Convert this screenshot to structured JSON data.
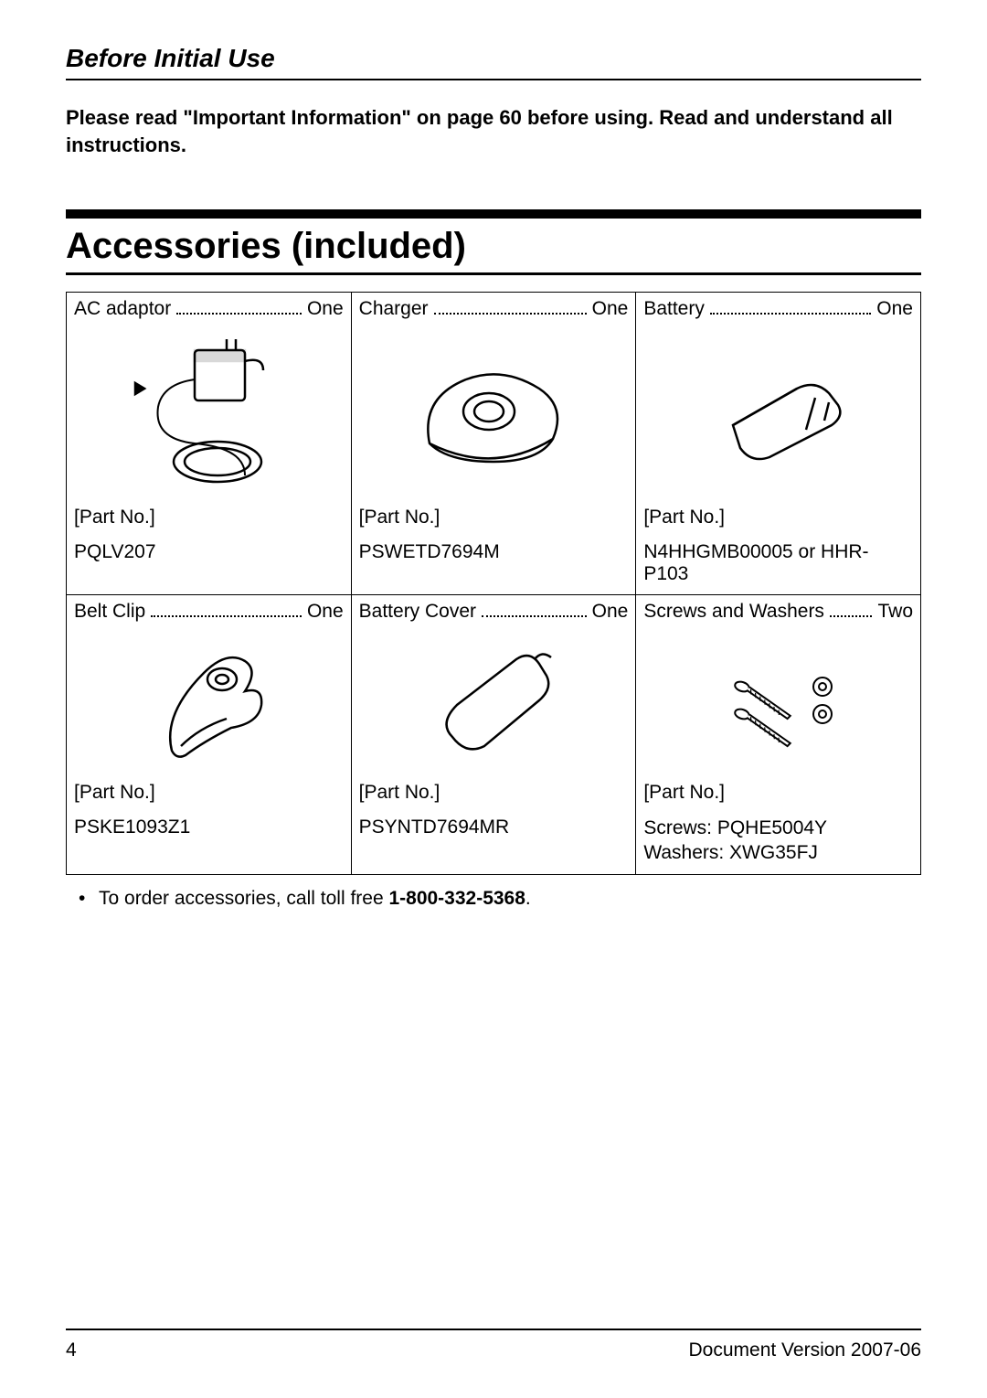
{
  "section_header": "Before Initial Use",
  "intro": "Please read \"Important Information\" on page 60 before using. Read and understand all instructions.",
  "heading": "Accessories (included)",
  "part_label": "[Part No.]",
  "items": [
    {
      "name": "AC adaptor",
      "qty": "One",
      "part": "PQLV207"
    },
    {
      "name": "Charger",
      "qty": "One",
      "part": "PSWETD7694M"
    },
    {
      "name": "Battery",
      "qty": "One",
      "part": "N4HHGMB00005 or HHR-P103"
    },
    {
      "name": "Belt Clip",
      "qty": "One",
      "part": "PSKE1093Z1"
    },
    {
      "name": "Battery Cover",
      "qty": "One",
      "part": "PSYNTD7694MR"
    },
    {
      "name": "Screws and Washers",
      "qty": "Two",
      "part_multi": "Screws: PQHE5004Y\nWashers: XWG35FJ"
    }
  ],
  "order_note_prefix": "To order accessories, call toll free ",
  "order_phone": "1-800-332-5368",
  "order_note_suffix": ".",
  "footer": {
    "page": "4",
    "version": "Document Version 2007-06"
  },
  "colors": {
    "text": "#000000",
    "background": "#ffffff",
    "rule": "#000000"
  }
}
